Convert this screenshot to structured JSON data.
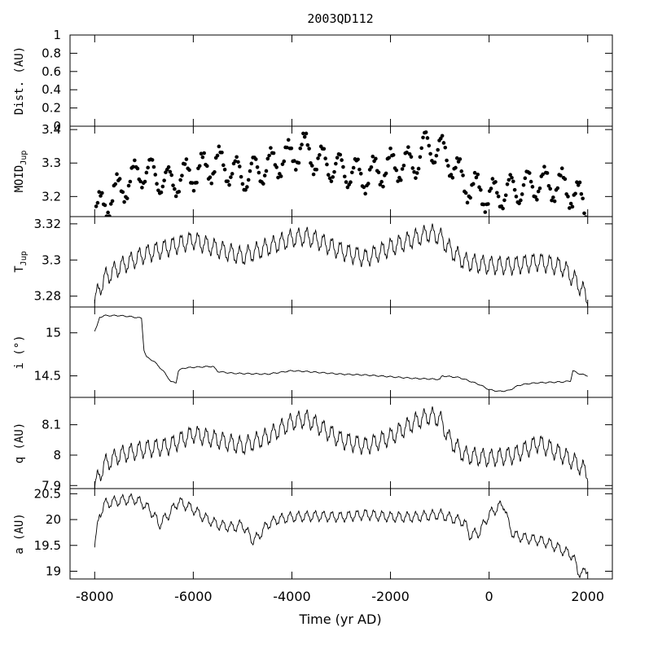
{
  "title": "2003QD112",
  "xlabel": "Time (yr AD)",
  "x_ticks": [
    -8000,
    -6000,
    -4000,
    -2000,
    0,
    2000
  ],
  "x_tick_labels": [
    "-8000",
    "-6000",
    "-4000",
    "-2000",
    "0",
    "2000"
  ],
  "chart_data": [
    {
      "type": "line",
      "ylabel": "Dist. (AU)",
      "xlim": [
        -8500,
        2500
      ],
      "ylim": [
        0,
        1
      ],
      "y_ticks": [
        0,
        0.2,
        0.4,
        0.6,
        0.8,
        1
      ],
      "y_tick_labels": [
        "0",
        "0.2",
        "0.4",
        "0.6",
        "0.8",
        "1"
      ],
      "series": []
    },
    {
      "type": "scatter",
      "ylabel": "MOID",
      "ylabel_sub": "Jup",
      "xlim": [
        -8500,
        2500
      ],
      "ylim": [
        3.14,
        3.41
      ],
      "y_ticks": [
        3.2,
        3.3,
        3.4
      ],
      "y_tick_labels": [
        "3.2",
        "3.3",
        "3.4"
      ],
      "series": [
        {
          "x": [
            -8000,
            -7500,
            -7000,
            -6500,
            -6000,
            -5500,
            -5000,
            -4500,
            -4000,
            -3800,
            -3500,
            -3000,
            -2500,
            -2000,
            -1500,
            -1300,
            -1000,
            -800,
            -500,
            0,
            500,
            1000,
            1500,
            1800,
            2000
          ],
          "y": [
            3.15,
            3.22,
            3.28,
            3.24,
            3.27,
            3.3,
            3.26,
            3.29,
            3.32,
            3.35,
            3.31,
            3.28,
            3.26,
            3.29,
            3.3,
            3.35,
            3.34,
            3.31,
            3.24,
            3.2,
            3.22,
            3.24,
            3.23,
            3.2,
            3.16
          ],
          "oscillation": 0.045
        }
      ]
    },
    {
      "type": "line",
      "ylabel": "T",
      "ylabel_sub": "Jup",
      "xlim": [
        -8500,
        2500
      ],
      "ylim": [
        3.274,
        3.324
      ],
      "y_ticks": [
        3.28,
        3.3,
        3.32
      ],
      "y_tick_labels": [
        "3.28",
        "3.3",
        "3.32"
      ],
      "series": [
        {
          "x": [
            -8000,
            -7800,
            -7500,
            -7000,
            -6500,
            -6000,
            -5500,
            -5000,
            -4500,
            -4000,
            -3700,
            -3500,
            -3000,
            -2500,
            -2000,
            -1500,
            -1200,
            -1000,
            -800,
            -500,
            0,
            500,
            1000,
            1500,
            1800,
            2000
          ],
          "y": [
            3.278,
            3.29,
            3.296,
            3.303,
            3.307,
            3.311,
            3.306,
            3.302,
            3.307,
            3.312,
            3.313,
            3.311,
            3.305,
            3.301,
            3.307,
            3.312,
            3.315,
            3.313,
            3.306,
            3.299,
            3.297,
            3.297,
            3.299,
            3.296,
            3.287,
            3.279
          ],
          "oscillation": 0.0045
        }
      ]
    },
    {
      "type": "line",
      "ylabel": "i (°)",
      "xlim": [
        -8500,
        2500
      ],
      "ylim": [
        14.25,
        15.3
      ],
      "y_ticks": [
        14.5,
        15
      ],
      "y_tick_labels": [
        "14.5",
        "15"
      ],
      "series": [
        {
          "x": [
            -8000,
            -7950,
            -7900,
            -7800,
            -7500,
            -7300,
            -7050,
            -7000,
            -6950,
            -6800,
            -6600,
            -6450,
            -6350,
            -6300,
            -6200,
            -6000,
            -5600,
            -5500,
            -5200,
            -4500,
            -4000,
            -3700,
            -3000,
            -2500,
            -2000,
            -1500,
            -1000,
            -950,
            -600,
            -200,
            0,
            200,
            400,
            600,
            800,
            1000,
            1500,
            1650,
            1700,
            1800,
            2000
          ],
          "y": [
            15.02,
            15.08,
            15.18,
            15.2,
            15.2,
            15.19,
            15.17,
            14.8,
            14.72,
            14.67,
            14.55,
            14.43,
            14.42,
            14.56,
            14.59,
            14.6,
            14.61,
            14.55,
            14.53,
            14.52,
            14.56,
            14.55,
            14.52,
            14.51,
            14.49,
            14.47,
            14.46,
            14.5,
            14.48,
            14.4,
            14.34,
            14.32,
            14.33,
            14.39,
            14.41,
            14.42,
            14.43,
            14.44,
            14.56,
            14.53,
            14.5
          ],
          "oscillation": 0.006
        }
      ]
    },
    {
      "type": "line",
      "ylabel": "q (AU)",
      "xlim": [
        -8500,
        2500
      ],
      "ylim": [
        7.89,
        8.19
      ],
      "y_ticks": [
        7.9,
        8,
        8.1
      ],
      "y_tick_labels": [
        "7.9",
        "8",
        "8.1"
      ],
      "series": [
        {
          "x": [
            -8000,
            -7800,
            -7500,
            -7000,
            -6500,
            -6000,
            -5500,
            -5000,
            -4500,
            -4000,
            -3700,
            -3500,
            -3000,
            -2500,
            -2000,
            -1500,
            -1200,
            -1000,
            -800,
            -500,
            0,
            500,
            1000,
            1500,
            1800,
            2000
          ],
          "y": [
            7.9,
            7.97,
            8.0,
            8.02,
            8.03,
            8.07,
            8.05,
            8.03,
            8.06,
            8.11,
            8.12,
            8.1,
            8.05,
            8.03,
            8.06,
            8.11,
            8.13,
            8.12,
            8.05,
            8.0,
            7.99,
            8.0,
            8.04,
            8.0,
            7.97,
            7.94
          ],
          "oscillation": 0.026
        }
      ]
    },
    {
      "type": "line",
      "ylabel": "a (AU)",
      "xlim": [
        -8500,
        2500
      ],
      "ylim": [
        18.85,
        20.6
      ],
      "y_ticks": [
        19,
        19.5,
        20,
        20.5
      ],
      "y_tick_labels": [
        "19",
        "19.5",
        "20",
        "20.5"
      ],
      "series": [
        {
          "x": [
            -8000,
            -7900,
            -7800,
            -7600,
            -7400,
            -7200,
            -7000,
            -6800,
            -6700,
            -6500,
            -6300,
            -6000,
            -5800,
            -5500,
            -5200,
            -5000,
            -4800,
            -4700,
            -4500,
            -4300,
            -4000,
            -3500,
            -3000,
            -2500,
            -2000,
            -1500,
            -1000,
            -500,
            -400,
            -200,
            0,
            200,
            300,
            400,
            500,
            700,
            1000,
            1200,
            1500,
            1700,
            1800,
            1900,
            2000
          ],
          "y": [
            19.5,
            20.1,
            20.3,
            20.35,
            20.38,
            20.4,
            20.3,
            20.1,
            19.9,
            20.1,
            20.35,
            20.2,
            20.05,
            19.9,
            19.85,
            19.9,
            19.6,
            19.65,
            19.9,
            20.0,
            20.05,
            20.07,
            20.05,
            20.1,
            20.05,
            20.05,
            20.1,
            19.95,
            19.7,
            19.75,
            20.1,
            20.25,
            20.3,
            19.9,
            19.7,
            19.65,
            19.6,
            19.55,
            19.4,
            19.3,
            19.0,
            18.95,
            19.05
          ],
          "oscillation": 0.09
        }
      ]
    }
  ]
}
